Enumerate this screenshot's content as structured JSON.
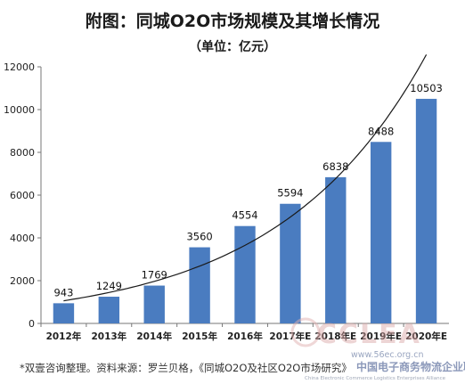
{
  "chart_data": {
    "type": "bar",
    "title": "附图：同城O2O市场规模及其增长情况",
    "subtitle": "（单位：亿元）",
    "categories": [
      "2012年",
      "2013年",
      "2014年",
      "2015年",
      "2016年",
      "2017年E",
      "2018年E",
      "2019年E",
      "2020年E"
    ],
    "values": [
      943,
      1249,
      1769,
      3560,
      4554,
      5594,
      6838,
      8488,
      10503
    ],
    "data_labels": [
      "943",
      "1249",
      "1769",
      "3560",
      "4554",
      "5594",
      "6838",
      "8488",
      "10503"
    ],
    "ylim": [
      0,
      12000
    ],
    "y_ticks": [
      "0",
      "2000",
      "4000",
      "6000",
      "8000",
      "10000",
      "12000"
    ],
    "xlabel": "",
    "ylabel": "",
    "grid": false,
    "trendline": true,
    "bar_color": "#4a7cc0",
    "trend_color": "#1a1a1a"
  },
  "source_note": "*双壹咨询整理。资料来源：罗兰贝格，《同城O2O及社区O2O市场研究》",
  "watermark": {
    "logo_text": "CCLEA",
    "url": "www.56ec.org.cn",
    "name_cn": "中国电子商务物流企业联盟",
    "name_en": "China Electronic Commerce Logistics Enterprises Alliance"
  }
}
